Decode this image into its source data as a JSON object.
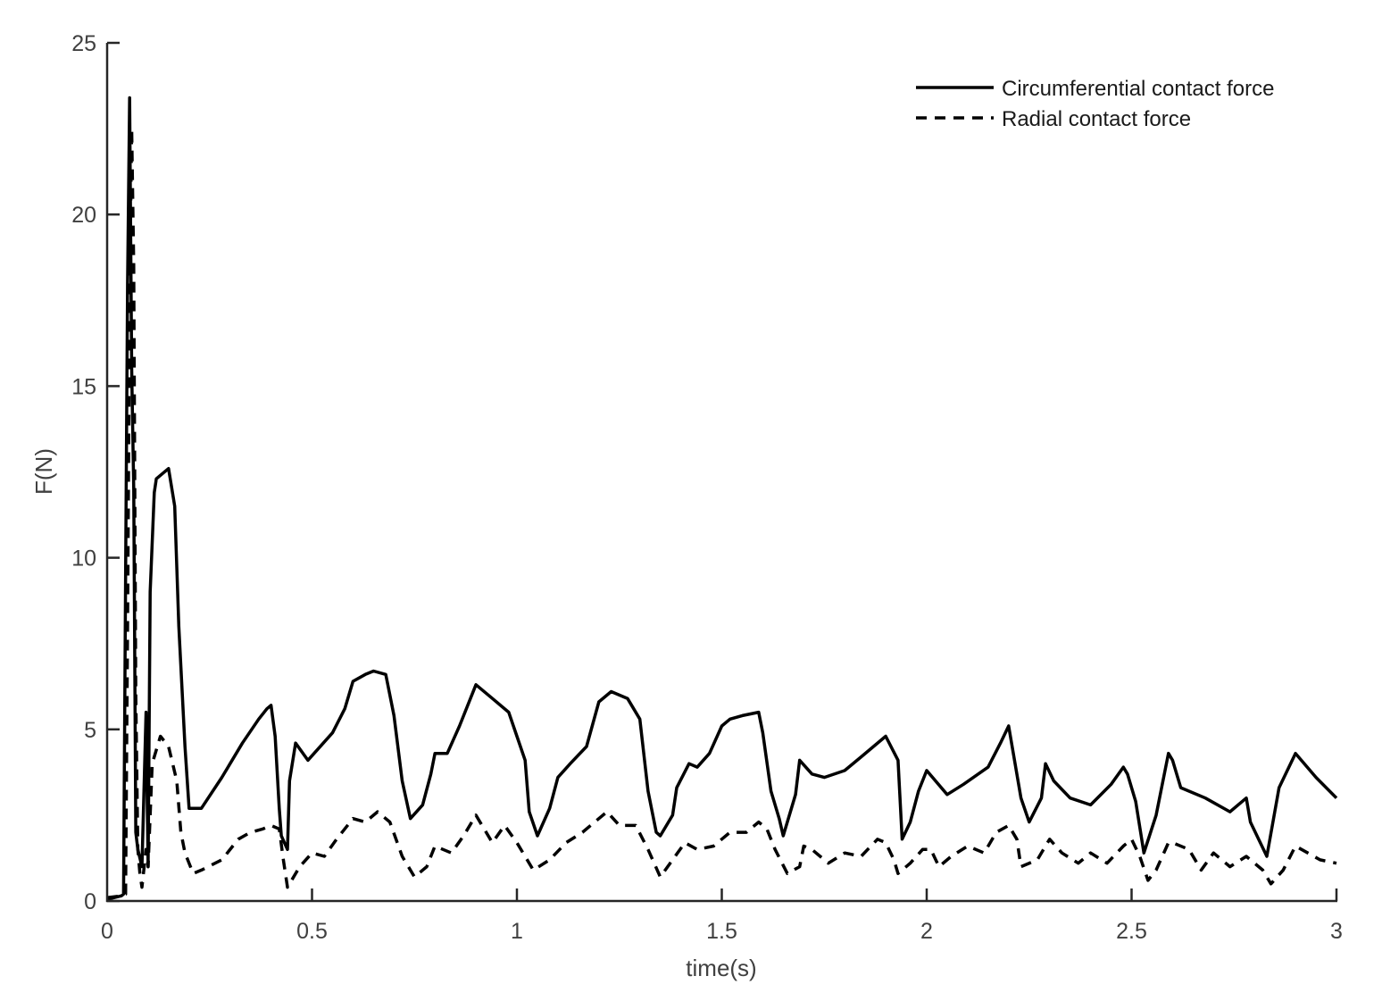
{
  "chart_data": {
    "type": "line",
    "title": "",
    "xlabel": "time(s)",
    "ylabel": "F(N)",
    "xlim": [
      0,
      3
    ],
    "ylim": [
      0,
      25
    ],
    "xticks": [
      0,
      0.5,
      1,
      1.5,
      2,
      2.5,
      3
    ],
    "xtick_labels": [
      "0",
      "0.5",
      "1",
      "1.5",
      "2",
      "2.5",
      "3"
    ],
    "yticks": [
      0,
      5,
      10,
      15,
      20,
      25
    ],
    "ytick_labels": [
      "0",
      "5",
      "10",
      "15",
      "20",
      "25"
    ],
    "grid": false,
    "legend_position": "upper right",
    "series": [
      {
        "name": "Circumferential contact force",
        "style": "solid",
        "color": "#000000",
        "x": [
          0,
          0.035,
          0.04,
          0.045,
          0.05,
          0.055,
          0.06,
          0.065,
          0.07,
          0.075,
          0.085,
          0.095,
          0.1,
          0.105,
          0.115,
          0.12,
          0.13,
          0.15,
          0.165,
          0.175,
          0.19,
          0.2,
          0.21,
          0.23,
          0.28,
          0.33,
          0.37,
          0.39,
          0.4,
          0.41,
          0.42,
          0.425,
          0.44,
          0.445,
          0.46,
          0.49,
          0.55,
          0.58,
          0.6,
          0.63,
          0.65,
          0.68,
          0.7,
          0.72,
          0.74,
          0.77,
          0.79,
          0.8,
          0.83,
          0.86,
          0.9,
          0.94,
          0.98,
          1.0,
          1.02,
          1.03,
          1.05,
          1.08,
          1.1,
          1.13,
          1.17,
          1.2,
          1.23,
          1.27,
          1.3,
          1.32,
          1.34,
          1.35,
          1.38,
          1.39,
          1.42,
          1.44,
          1.47,
          1.5,
          1.52,
          1.55,
          1.59,
          1.6,
          1.62,
          1.64,
          1.65,
          1.68,
          1.69,
          1.72,
          1.75,
          1.8,
          1.84,
          1.9,
          1.93,
          1.94,
          1.96,
          1.98,
          2.0,
          2.05,
          2.09,
          2.15,
          2.18,
          2.2,
          2.21,
          2.23,
          2.25,
          2.28,
          2.29,
          2.31,
          2.35,
          2.4,
          2.45,
          2.48,
          2.49,
          2.51,
          2.53,
          2.56,
          2.59,
          2.6,
          2.62,
          2.68,
          2.74,
          2.78,
          2.79,
          2.83,
          2.86,
          2.9,
          2.95,
          3.0
        ],
        "values": [
          0.05,
          0.15,
          0.2,
          9.5,
          18.0,
          23.4,
          15.5,
          12.0,
          2.0,
          1.5,
          1.0,
          5.5,
          1.0,
          9.0,
          11.9,
          12.3,
          12.4,
          12.6,
          11.5,
          8.0,
          4.5,
          2.7,
          2.7,
          2.7,
          3.6,
          4.6,
          5.3,
          5.6,
          5.7,
          4.8,
          2.7,
          1.9,
          1.5,
          3.5,
          4.6,
          4.1,
          4.9,
          5.6,
          6.4,
          6.6,
          6.7,
          6.6,
          5.4,
          3.5,
          2.4,
          2.8,
          3.7,
          4.3,
          4.3,
          5.1,
          6.3,
          5.9,
          5.5,
          4.8,
          4.1,
          2.6,
          1.9,
          2.7,
          3.6,
          4.0,
          4.5,
          5.8,
          6.1,
          5.9,
          5.3,
          3.2,
          2.0,
          1.9,
          2.5,
          3.3,
          4.0,
          3.9,
          4.3,
          5.1,
          5.3,
          5.4,
          5.5,
          4.9,
          3.2,
          2.4,
          1.9,
          3.1,
          4.1,
          3.7,
          3.6,
          3.8,
          4.2,
          4.8,
          4.1,
          1.8,
          2.3,
          3.2,
          3.8,
          3.1,
          3.4,
          3.9,
          4.6,
          5.1,
          4.4,
          3.0,
          2.3,
          3.0,
          4.0,
          3.5,
          3.0,
          2.8,
          3.4,
          3.9,
          3.7,
          2.9,
          1.4,
          2.5,
          4.3,
          4.1,
          3.3,
          3.0,
          2.6,
          3.0,
          2.3,
          1.3,
          3.3,
          4.3,
          3.6,
          3.0
        ]
      },
      {
        "name": "Radial contact force",
        "style": "dashed",
        "color": "#000000",
        "x": [
          0,
          0.035,
          0.045,
          0.05,
          0.055,
          0.06,
          0.065,
          0.07,
          0.075,
          0.08,
          0.085,
          0.095,
          0.1,
          0.11,
          0.13,
          0.15,
          0.17,
          0.18,
          0.19,
          0.21,
          0.23,
          0.28,
          0.32,
          0.35,
          0.38,
          0.4,
          0.42,
          0.43,
          0.44,
          0.47,
          0.5,
          0.53,
          0.56,
          0.6,
          0.63,
          0.66,
          0.69,
          0.72,
          0.75,
          0.78,
          0.8,
          0.84,
          0.87,
          0.9,
          0.94,
          0.97,
          1.0,
          1.04,
          1.08,
          1.12,
          1.16,
          1.2,
          1.22,
          1.25,
          1.29,
          1.32,
          1.35,
          1.38,
          1.41,
          1.44,
          1.48,
          1.52,
          1.56,
          1.59,
          1.61,
          1.63,
          1.66,
          1.69,
          1.7,
          1.72,
          1.76,
          1.8,
          1.84,
          1.88,
          1.9,
          1.92,
          1.93,
          1.96,
          1.99,
          2.01,
          2.03,
          2.06,
          2.1,
          2.14,
          2.17,
          2.2,
          2.22,
          2.23,
          2.27,
          2.3,
          2.33,
          2.37,
          2.4,
          2.44,
          2.48,
          2.5,
          2.52,
          2.54,
          2.56,
          2.59,
          2.6,
          2.64,
          2.67,
          2.7,
          2.74,
          2.78,
          2.8,
          2.82,
          2.84,
          2.87,
          2.9,
          2.93,
          2.96,
          3.0
        ],
        "values": [
          0.1,
          0.15,
          0.2,
          8.0,
          17.5,
          22.5,
          18.5,
          6.0,
          1.5,
          0.8,
          0.4,
          1.5,
          1.0,
          4.0,
          4.8,
          4.5,
          3.5,
          2.0,
          1.4,
          0.8,
          0.9,
          1.2,
          1.8,
          2.0,
          2.1,
          2.2,
          2.1,
          1.2,
          0.4,
          1.0,
          1.4,
          1.3,
          1.8,
          2.4,
          2.3,
          2.6,
          2.3,
          1.3,
          0.7,
          1.0,
          1.6,
          1.4,
          1.9,
          2.5,
          1.7,
          2.2,
          1.7,
          0.9,
          1.2,
          1.7,
          2.0,
          2.4,
          2.6,
          2.2,
          2.2,
          1.5,
          0.7,
          1.2,
          1.7,
          1.5,
          1.6,
          2.0,
          2.0,
          2.3,
          2.1,
          1.5,
          0.8,
          1.0,
          1.6,
          1.5,
          1.1,
          1.4,
          1.3,
          1.8,
          1.7,
          1.2,
          0.8,
          1.1,
          1.5,
          1.5,
          1.0,
          1.3,
          1.6,
          1.4,
          2.0,
          2.2,
          1.8,
          1.0,
          1.2,
          1.8,
          1.4,
          1.1,
          1.4,
          1.1,
          1.6,
          1.8,
          1.3,
          0.6,
          0.9,
          1.7,
          1.7,
          1.5,
          0.9,
          1.4,
          1.0,
          1.3,
          1.1,
          0.9,
          0.5,
          0.9,
          1.6,
          1.4,
          1.2,
          1.1
        ]
      }
    ]
  },
  "legend": {
    "items": [
      {
        "label": "Circumferential contact force",
        "style": "solid"
      },
      {
        "label": "Radial contact force",
        "style": "dashed"
      }
    ]
  },
  "axes": {
    "xlabel": "time(s)",
    "ylabel": "F(N)",
    "xtick_labels": [
      "0",
      "0.5",
      "1",
      "1.5",
      "2",
      "2.5",
      "3"
    ],
    "ytick_labels": [
      "0",
      "5",
      "10",
      "15",
      "20",
      "25"
    ]
  },
  "colors": {
    "axis": "#262626",
    "tick_text": "#404040",
    "line": "#000000",
    "background": "#ffffff"
  }
}
